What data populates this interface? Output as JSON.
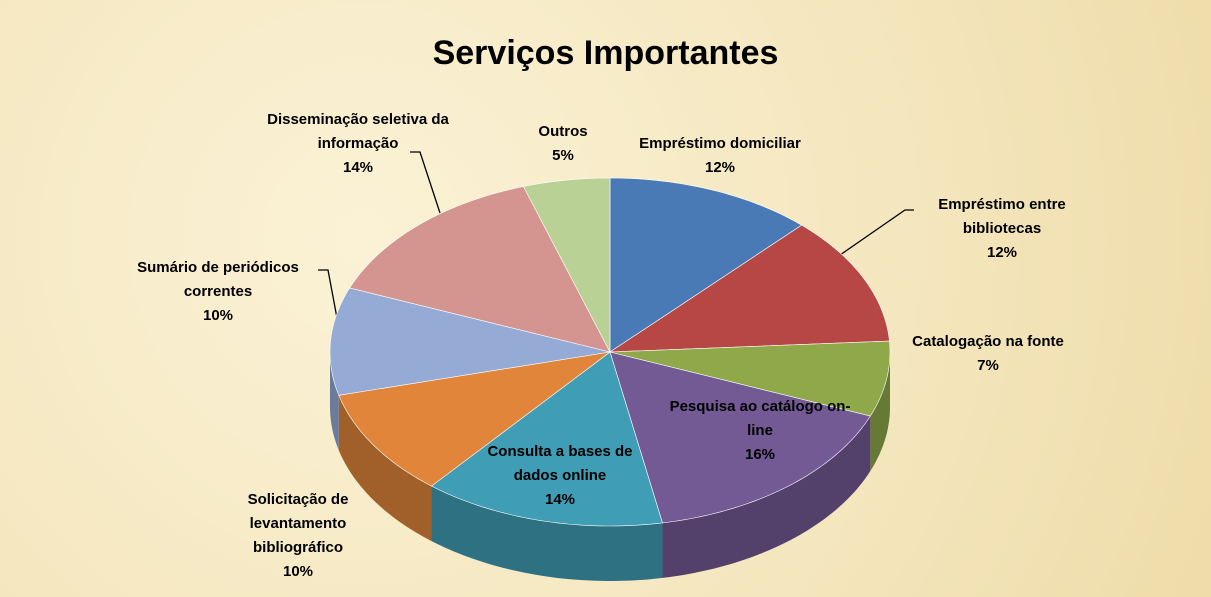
{
  "chart_data": {
    "type": "pie3d",
    "title": "Serviços Importantes",
    "categories": [
      "Empréstimo domiciliar",
      "Empréstimo entre bibliotecas",
      "Catalogação na fonte",
      "Pesquisa ao catálogo on-line",
      "Consulta a bases de dados online",
      "Solicitação de levantamento bibliográfico",
      "Sumário de periódicos correntes",
      "Disseminação seletiva da informação",
      "Outros"
    ],
    "values": [
      12,
      12,
      7,
      16,
      14,
      10,
      10,
      14,
      5
    ],
    "value_labels": [
      "12%",
      "12%",
      "7%",
      "16%",
      "14%",
      "10%",
      "10%",
      "14%",
      "5%"
    ],
    "colors": [
      "#4a7ab5",
      "#b64744",
      "#8ea84a",
      "#745a95",
      "#3f9db5",
      "#e0853a",
      "#95abd6",
      "#d49591",
      "#b9d195"
    ]
  }
}
